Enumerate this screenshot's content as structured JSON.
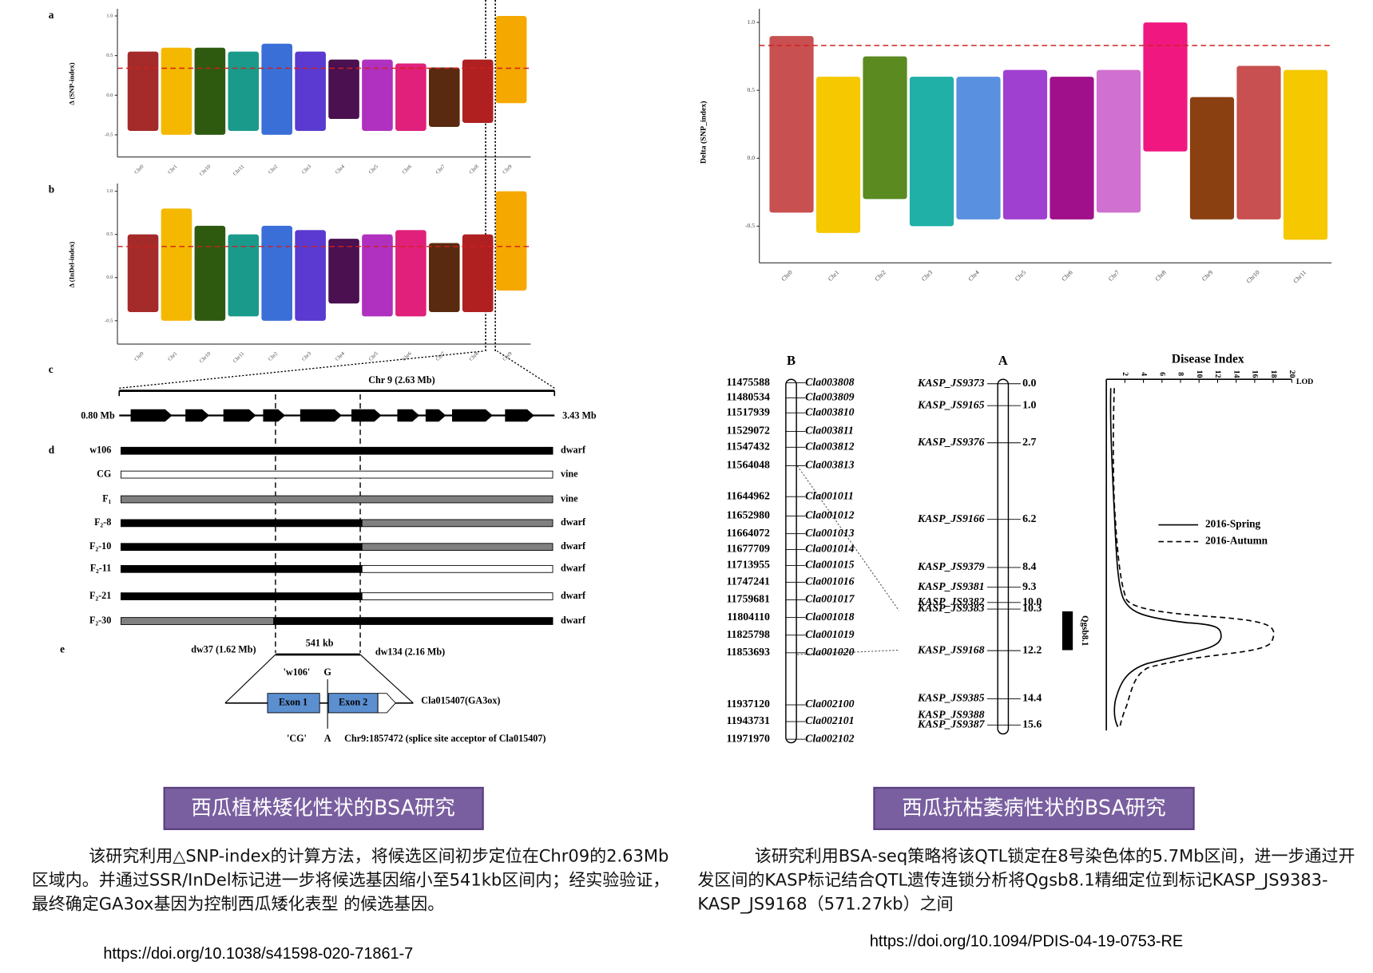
{
  "fig_left": {
    "panel_a": {
      "label": "a",
      "ylabel": "Δ (SNP-index)",
      "ylim": [
        -0.78,
        1.09
      ],
      "threshold": 0.34,
      "yticks": [
        {
          "value": 1,
          "label": "1.0"
        },
        {
          "value": 0.5,
          "label": "0.5"
        },
        {
          "value": 0,
          "label": "0.0"
        },
        {
          "value": -0.5,
          "label": "-0.5"
        }
      ],
      "chromosomes": [
        {
          "name": "Chr0",
          "color": "#a52a2a",
          "range": [
            -0.45,
            0.55
          ]
        },
        {
          "name": "Chr1",
          "color": "#f5b800",
          "range": [
            -0.5,
            0.6
          ]
        },
        {
          "name": "Chr10",
          "color": "#2e5a10",
          "range": [
            -0.5,
            0.6
          ]
        },
        {
          "name": "Chr11",
          "color": "#1a9a8a",
          "range": [
            -0.45,
            0.55
          ]
        },
        {
          "name": "Chr2",
          "color": "#3a6fd8",
          "range": [
            -0.5,
            0.65
          ]
        },
        {
          "name": "Chr3",
          "color": "#5a3ad0",
          "range": [
            -0.45,
            0.55
          ]
        },
        {
          "name": "Chr4",
          "color": "#4a1050",
          "range": [
            -0.3,
            0.45
          ]
        },
        {
          "name": "Chr5",
          "color": "#b030c0",
          "range": [
            -0.45,
            0.45
          ]
        },
        {
          "name": "Chr6",
          "color": "#e0207a",
          "range": [
            -0.45,
            0.4
          ]
        },
        {
          "name": "Chr7",
          "color": "#5a2a10",
          "range": [
            -0.4,
            0.35
          ]
        },
        {
          "name": "Chr8",
          "color": "#b02020",
          "range": [
            -0.35,
            0.45
          ]
        },
        {
          "name": "Chr9",
          "color": "#f5a800",
          "range": [
            -0.1,
            1.0
          ]
        }
      ]
    },
    "panel_b": {
      "label": "b",
      "ylabel": "Δ (InDel-index)",
      "ylim": [
        -0.77,
        1.09
      ],
      "threshold": 0.36,
      "yticks": [
        {
          "value": 1,
          "label": "1.0"
        },
        {
          "value": 0.5,
          "label": "0.5"
        },
        {
          "value": 0,
          "label": "0.0"
        },
        {
          "value": -0.5,
          "label": "-0.5"
        }
      ],
      "chromosomes": [
        {
          "name": "Chr0",
          "color": "#a52a2a",
          "range": [
            -0.4,
            0.5
          ]
        },
        {
          "name": "Chr1",
          "color": "#f5b800",
          "range": [
            -0.5,
            0.8
          ]
        },
        {
          "name": "Chr10",
          "color": "#2e5a10",
          "range": [
            -0.5,
            0.6
          ]
        },
        {
          "name": "Chr11",
          "color": "#1a9a8a",
          "range": [
            -0.45,
            0.5
          ]
        },
        {
          "name": "Chr2",
          "color": "#3a6fd8",
          "range": [
            -0.5,
            0.6
          ]
        },
        {
          "name": "Chr3",
          "color": "#5a3ad0",
          "range": [
            -0.5,
            0.55
          ]
        },
        {
          "name": "Chr4",
          "color": "#4a1050",
          "range": [
            -0.3,
            0.45
          ]
        },
        {
          "name": "Chr5",
          "color": "#b030c0",
          "range": [
            -0.45,
            0.5
          ]
        },
        {
          "name": "Chr6",
          "color": "#e0207a",
          "range": [
            -0.45,
            0.55
          ]
        },
        {
          "name": "Chr7",
          "color": "#5a2a10",
          "range": [
            -0.4,
            0.4
          ]
        },
        {
          "name": "Chr8",
          "color": "#b02020",
          "range": [
            -0.4,
            0.5
          ]
        },
        {
          "name": "Chr9",
          "color": "#f5a800",
          "range": [
            -0.15,
            1.0
          ]
        }
      ]
    },
    "panel_c": {
      "label": "c",
      "title": "Chr 9 (2.63 Mb)",
      "start": "0.80 Mb",
      "end": "3.43 Mb"
    },
    "panel_d": {
      "label": "d",
      "rows": [
        {
          "label": "w106",
          "phenotype": "dwarf",
          "segments": [
            "black"
          ]
        },
        {
          "label": "CG",
          "phenotype": "vine",
          "segments": [
            "white"
          ]
        },
        {
          "label": "F₁",
          "phenotype": "vine",
          "segments": [
            "gray"
          ]
        },
        {
          "label": "F₂-8",
          "phenotype": "dwarf",
          "segments": [
            "black",
            "gray"
          ]
        },
        {
          "label": "F₂-10",
          "phenotype": "dwarf",
          "segments": [
            "black",
            "gray"
          ]
        },
        {
          "label": "F₂-11",
          "phenotype": "dwarf",
          "segments": [
            "black",
            "white"
          ]
        },
        {
          "label": "F₂-21",
          "phenotype": "dwarf",
          "segments": [
            "black",
            "white"
          ]
        },
        {
          "label": "F₂-30",
          "phenotype": "dwarf",
          "segments": [
            "gray",
            "black"
          ]
        }
      ]
    },
    "panel_e": {
      "label": "e",
      "left_marker": "dw37 (1.62 Mb)",
      "interval": "541 kb",
      "right_marker": "dw134 (2.16 Mb)",
      "allele_top_name": "'w106'",
      "allele_top": "G",
      "exon1": "Exon 1",
      "exon2": "Exon 2",
      "gene": "Cla015407(GA3ox)",
      "allele_bottom_name": "'CG'",
      "allele_bottom": "A",
      "site": "Chr9:1857472 (splice site acceptor of Cla015407)"
    },
    "caption": "西瓜植株矮化性状的BSA研究",
    "text": "该研究利用△SNP-index的计算方法，将候选区间初步定位在Chr09的2.63Mb区域内。并通过SSR/InDel标记进一步将候选基因缩小至541kb区间内；经实验验证，最终确定GA3ox基因为控制西瓜矮化表型 的候选基因。",
    "url": "https://doi.org/10.1038/s41598-020-71861-7"
  },
  "fig_right": {
    "manhattan": {
      "ylabel": "Delta (SNP_index)",
      "ylim": [
        -0.77,
        1.1
      ],
      "threshold": 0.83,
      "yticks": [
        {
          "value": 1,
          "label": "1.0"
        },
        {
          "value": 0.5,
          "label": "0.5"
        },
        {
          "value": 0,
          "label": "0.0"
        },
        {
          "value": -0.5,
          "label": "-0.5"
        }
      ],
      "chromosomes": [
        {
          "name": "Chr0",
          "color": "#c85050",
          "range": [
            -0.4,
            0.9
          ]
        },
        {
          "name": "Chr1",
          "color": "#f5c800",
          "range": [
            -0.55,
            0.6
          ]
        },
        {
          "name": "Chr2",
          "color": "#5a8a20",
          "range": [
            -0.3,
            0.75
          ]
        },
        {
          "name": "Chr3",
          "color": "#20b0a8",
          "range": [
            -0.5,
            0.6
          ]
        },
        {
          "name": "Chr4",
          "color": "#5a90e0",
          "range": [
            -0.45,
            0.6
          ]
        },
        {
          "name": "Chr5",
          "color": "#a040d0",
          "range": [
            -0.45,
            0.65
          ]
        },
        {
          "name": "Chr6",
          "color": "#a0108a",
          "range": [
            -0.45,
            0.6
          ]
        },
        {
          "name": "Chr7",
          "color": "#d070d0",
          "range": [
            -0.4,
            0.65
          ]
        },
        {
          "name": "Chr8",
          "color": "#f01880",
          "range": [
            0.05,
            1.0
          ]
        },
        {
          "name": "Chr9",
          "color": "#8a4010",
          "range": [
            -0.45,
            0.45
          ]
        },
        {
          "name": "Chr10",
          "color": "#c85050",
          "range": [
            -0.45,
            0.68
          ]
        },
        {
          "name": "Chr11",
          "color": "#f5c800",
          "range": [
            -0.6,
            0.65
          ]
        }
      ]
    },
    "map_b": {
      "title": "B",
      "rows": [
        {
          "position": "11475588",
          "gene": "Cla003808"
        },
        {
          "position": "11480534",
          "gene": "Cla003809"
        },
        {
          "position": "11517939",
          "gene": "Cla003810"
        },
        {
          "position": "11529072",
          "gene": "Cla003811"
        },
        {
          "position": "11547432",
          "gene": "Cla003812"
        },
        {
          "position": "11564048",
          "gene": "Cla003813"
        },
        {
          "position": "11644962",
          "gene": "Cla001011"
        },
        {
          "position": "11652980",
          "gene": "Cla001012"
        },
        {
          "position": "11664072",
          "gene": "Cla001013"
        },
        {
          "position": "11677709",
          "gene": "Cla001014"
        },
        {
          "position": "11713955",
          "gene": "Cla001015"
        },
        {
          "position": "11747241",
          "gene": "Cla001016"
        },
        {
          "position": "11759681",
          "gene": "Cla001017"
        },
        {
          "position": "11804110",
          "gene": "Cla001018"
        },
        {
          "position": "11825798",
          "gene": "Cla001019"
        },
        {
          "position": "11853693",
          "gene": "Cla001020"
        },
        {
          "position": "11937120",
          "gene": "Cla002100"
        },
        {
          "position": "11943731",
          "gene": "Cla002101"
        },
        {
          "position": "11971970",
          "gene": "Cla002102"
        }
      ]
    },
    "map_a": {
      "title": "A",
      "markers": [
        {
          "name": "KASP_JS9373",
          "cM": {
            "value": 0,
            "label": "0.0"
          }
        },
        {
          "name": "KASP_JS9165",
          "cM": {
            "value": 1,
            "label": "1.0"
          }
        },
        {
          "name": "KASP_JS9376",
          "cM": {
            "value": 2.7,
            "label": "2.7"
          }
        },
        {
          "name": "KASP_JS9166",
          "cM": {
            "value": 6.2,
            "label": "6.2"
          }
        },
        {
          "name": "KASP_JS9379",
          "cM": {
            "value": 8.4,
            "label": "8.4"
          }
        },
        {
          "name": "KASP_JS9381",
          "cM": {
            "value": 9.3,
            "label": "9.3"
          }
        },
        {
          "name": "KASP_JS9382",
          "cM": {
            "value": 10,
            "label": "10.0"
          }
        },
        {
          "name": "KASP_JS9383",
          "cM": {
            "value": 10.3,
            "label": "10.3"
          }
        },
        {
          "name": "KASP_JS9168",
          "cM": {
            "value": 12.2,
            "label": "12.2"
          }
        },
        {
          "name": "KASP_JS9385",
          "cM": {
            "value": 14.4,
            "label": "14.4"
          }
        },
        {
          "name": "KASP_JS9388",
          "cM": null
        },
        {
          "name": "KASP_JS9387",
          "cM": {
            "value": 15.6,
            "label": "15.6"
          }
        }
      ]
    },
    "lod_plot": {
      "title": "Disease Index",
      "axis_label": "LOD",
      "xlim": [
        0,
        20
      ],
      "xticks": [
        2,
        4,
        6,
        8,
        10,
        12,
        14,
        16,
        18,
        20
      ],
      "qtl": "Qgsb8.1",
      "legend": [
        "2016-Spring",
        "2016-Autumn"
      ]
    },
    "caption": "西瓜抗枯萎病性状的BSA研究",
    "text": "该研究利用BSA-seq策略将该QTL锁定在8号染色体的5.7Mb区间，进一步通过开发区间的KASP标记结合QTL遗传连锁分析将Qgsb8.1精细定位到标记KASP_JS9383-KASP_JS9168（571.27kb）之间",
    "url": "https://doi.org/10.1094/PDIS-04-19-0753-RE"
  }
}
